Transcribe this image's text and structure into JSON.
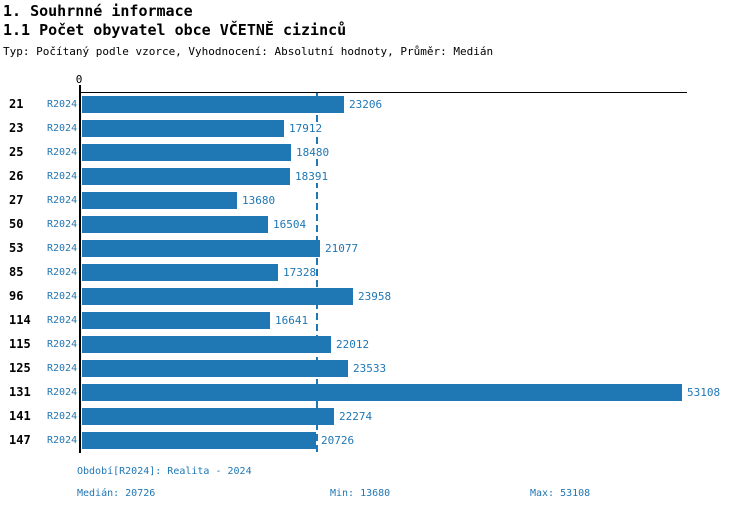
{
  "header": {
    "title": "1. Souhrnné informace",
    "subtitle": "1.1 Počet obyvatel obce VČETNĚ cizinců",
    "meta": "Typ: Počítaný podle vzorce, Vyhodnocení: Absolutní hodnoty, Průměr: Medián"
  },
  "chart_data": {
    "type": "bar",
    "orientation": "horizontal",
    "title": "1.1 Počet obyvatel obce VČETNĚ cizinců",
    "series_label": "R2024",
    "categories": [
      "21",
      "23",
      "25",
      "26",
      "27",
      "50",
      "53",
      "85",
      "96",
      "114",
      "115",
      "125",
      "131",
      "141",
      "147"
    ],
    "values": [
      23206,
      17912,
      18480,
      18391,
      13680,
      16504,
      21077,
      17328,
      23958,
      16641,
      22012,
      23533,
      53108,
      22274,
      20726
    ],
    "value_labels": true,
    "x_zero_tick_label": "0",
    "xlim": [
      0,
      53600
    ],
    "median_line_value": 20726,
    "grid": false,
    "legend": "none",
    "bar_color": "#1f77b4"
  },
  "footer": {
    "period": "Období[R2024]: Realita - 2024",
    "median": "Medián: 20726",
    "min": "Min: 13680",
    "max": "Max: 53108"
  },
  "colors": {
    "accent": "#1f77b4",
    "text": "#000000"
  }
}
